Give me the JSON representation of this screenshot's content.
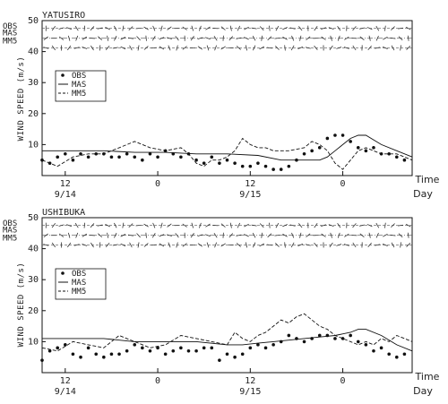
{
  "chart_data": [
    {
      "type": "line",
      "title": "YATUSIRO",
      "ylabel": "WIND SPEED (m/s)",
      "ylim": [
        0,
        50
      ],
      "yticks": [
        "10",
        "20",
        "30",
        "40",
        "50"
      ],
      "xlim": [
        0,
        48
      ],
      "xticks": [
        {
          "x": 3,
          "label": "12"
        },
        {
          "x": 15,
          "label": "0"
        },
        {
          "x": 27,
          "label": "12"
        },
        {
          "x": 39,
          "label": "0"
        }
      ],
      "date_labels": [
        {
          "x": 3,
          "label": "9/14"
        },
        {
          "x": 27,
          "label": "9/15"
        }
      ],
      "x_axis_labels": {
        "time": "Time",
        "day": "Day"
      },
      "legend": [
        "OBS",
        "MAS",
        "MM5"
      ],
      "vector_rows": [
        "OBS",
        "MAS",
        "MM5"
      ],
      "series": [
        {
          "name": "OBS",
          "style": "points",
          "x": [
            0,
            1,
            2,
            3,
            4,
            5,
            6,
            7,
            8,
            9,
            10,
            11,
            12,
            13,
            14,
            15,
            16,
            17,
            18,
            19,
            20,
            21,
            22,
            23,
            24,
            25,
            26,
            27,
            28,
            29,
            30,
            31,
            32,
            33,
            34,
            35,
            36,
            37,
            38,
            39,
            40,
            41,
            42,
            43,
            44,
            45,
            46,
            47
          ],
          "y": [
            5,
            4,
            6,
            7,
            5,
            7,
            6,
            7,
            7,
            6,
            6,
            7,
            6,
            5,
            7,
            6,
            8,
            7,
            6,
            7,
            5,
            4,
            6,
            4,
            5,
            4,
            3,
            3,
            4,
            3,
            2,
            2,
            3,
            5,
            7,
            8,
            9,
            12,
            13,
            13,
            11,
            9,
            8,
            9,
            7,
            7,
            6,
            5
          ]
        },
        {
          "name": "MAS",
          "style": "solid",
          "x": [
            0,
            4,
            8,
            12,
            16,
            20,
            24,
            28,
            31,
            34,
            36,
            37,
            38,
            39,
            40,
            41,
            42,
            44,
            46,
            48
          ],
          "y": [
            8,
            8,
            8,
            7.5,
            7.5,
            7,
            7,
            6.5,
            5,
            5,
            5,
            6,
            8,
            10,
            12,
            13,
            13,
            10,
            8,
            6
          ]
        },
        {
          "name": "MM5",
          "style": "dashed",
          "x": [
            0,
            2,
            4,
            6,
            8,
            10,
            12,
            14,
            16,
            18,
            19,
            20,
            21,
            22,
            23,
            24,
            25,
            26,
            27,
            28,
            29,
            30,
            32,
            34,
            35,
            36,
            37,
            38,
            39,
            40,
            41,
            42,
            43,
            44,
            45,
            46,
            47,
            48
          ],
          "y": [
            5,
            3,
            6,
            7,
            7,
            9,
            11,
            9,
            8,
            9,
            7,
            4,
            3,
            5,
            5,
            6,
            8,
            12,
            10,
            9,
            9,
            8,
            8,
            9,
            11,
            10,
            8,
            4,
            2,
            5,
            8,
            9,
            8,
            7,
            7,
            7,
            6,
            5
          ]
        }
      ]
    },
    {
      "type": "line",
      "title": "USHIBUKA",
      "ylabel": "WIND SPEED (m/s)",
      "ylim": [
        0,
        50
      ],
      "yticks": [
        "10",
        "20",
        "30",
        "40",
        "50"
      ],
      "xlim": [
        0,
        48
      ],
      "xticks": [
        {
          "x": 3,
          "label": "12"
        },
        {
          "x": 15,
          "label": "0"
        },
        {
          "x": 27,
          "label": "12"
        },
        {
          "x": 39,
          "label": "0"
        }
      ],
      "date_labels": [
        {
          "x": 3,
          "label": "9/14"
        },
        {
          "x": 27,
          "label": "9/15"
        }
      ],
      "x_axis_labels": {
        "time": "Time",
        "day": "Day"
      },
      "legend": [
        "OBS",
        "MAS",
        "MM5"
      ],
      "vector_rows": [
        "OBS",
        "MAS",
        "MM5"
      ],
      "series": [
        {
          "name": "OBS",
          "style": "points",
          "x": [
            0,
            1,
            2,
            3,
            4,
            5,
            6,
            7,
            8,
            9,
            10,
            11,
            12,
            13,
            14,
            15,
            16,
            17,
            18,
            19,
            20,
            21,
            22,
            23,
            24,
            25,
            26,
            27,
            28,
            29,
            30,
            31,
            32,
            33,
            34,
            35,
            36,
            37,
            38,
            39,
            40,
            41,
            42,
            43,
            44,
            45,
            46,
            47
          ],
          "y": [
            4,
            7,
            8,
            9,
            6,
            5,
            8,
            6,
            5,
            6,
            6,
            7,
            9,
            8,
            7,
            8,
            6,
            7,
            8,
            7,
            7,
            8,
            8,
            4,
            6,
            5,
            6,
            8,
            9,
            8,
            9,
            10,
            12,
            11,
            10,
            11,
            12,
            12,
            11,
            11,
            12,
            10,
            9,
            7,
            8,
            6,
            5,
            6
          ]
        },
        {
          "name": "MAS",
          "style": "solid",
          "x": [
            0,
            4,
            8,
            12,
            16,
            20,
            24,
            26,
            28,
            30,
            32,
            34,
            36,
            38,
            40,
            41,
            42,
            44,
            46,
            48
          ],
          "y": [
            11,
            11,
            11,
            10,
            10,
            10,
            9,
            9,
            9.5,
            10,
            10.5,
            11,
            11.5,
            12,
            13,
            14,
            14,
            12,
            9,
            7
          ]
        },
        {
          "name": "MM5",
          "style": "dashed",
          "x": [
            0,
            2,
            4,
            6,
            8,
            10,
            12,
            14,
            16,
            18,
            20,
            22,
            24,
            25,
            26,
            27,
            28,
            29,
            30,
            31,
            32,
            33,
            34,
            35,
            36,
            37,
            38,
            39,
            40,
            41,
            42,
            43,
            44,
            45,
            46,
            47,
            48
          ],
          "y": [
            8,
            7,
            10,
            9,
            8,
            12,
            10,
            8,
            9,
            12,
            11,
            10,
            9,
            13,
            11,
            10,
            12,
            13,
            15,
            17,
            16,
            18,
            19,
            17,
            15,
            14,
            12,
            11,
            10,
            9,
            10,
            9,
            11,
            10,
            12,
            11,
            10
          ]
        }
      ]
    }
  ]
}
